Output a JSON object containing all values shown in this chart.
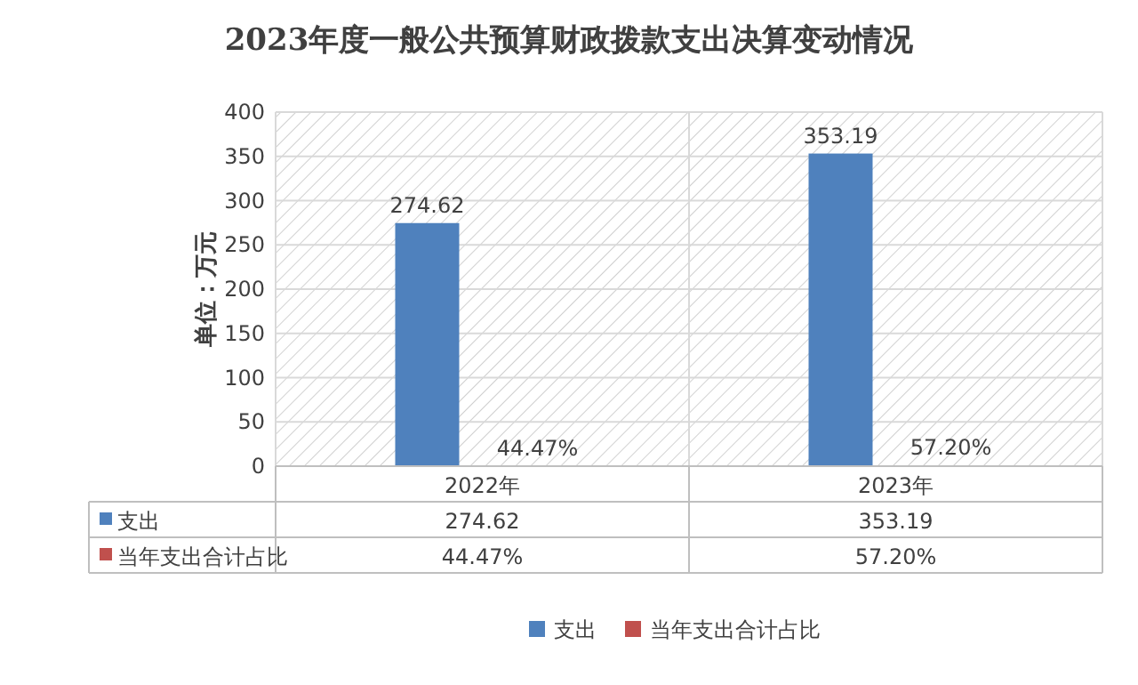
{
  "chart_data": {
    "type": "bar",
    "title": "2023年度一般公共预算财政拨款支出决算变动情况",
    "ylabel": "单位：万元",
    "categories": [
      "2022年",
      "2023年"
    ],
    "series": [
      {
        "name": "支出",
        "color": "#4f81bd",
        "values": [
          274.62,
          353.19
        ],
        "value_labels": [
          "274.62",
          "353.19"
        ]
      },
      {
        "name": "当年支出合计占比",
        "color": "#c0504d",
        "values": [
          0.4447,
          0.572
        ],
        "value_labels": [
          "44.47%",
          "57.20%"
        ]
      }
    ],
    "ylim": [
      0,
      400
    ],
    "yticks": [
      0,
      50,
      100,
      150,
      200,
      250,
      300,
      350,
      400
    ],
    "grid": true,
    "legend": "bottom"
  }
}
